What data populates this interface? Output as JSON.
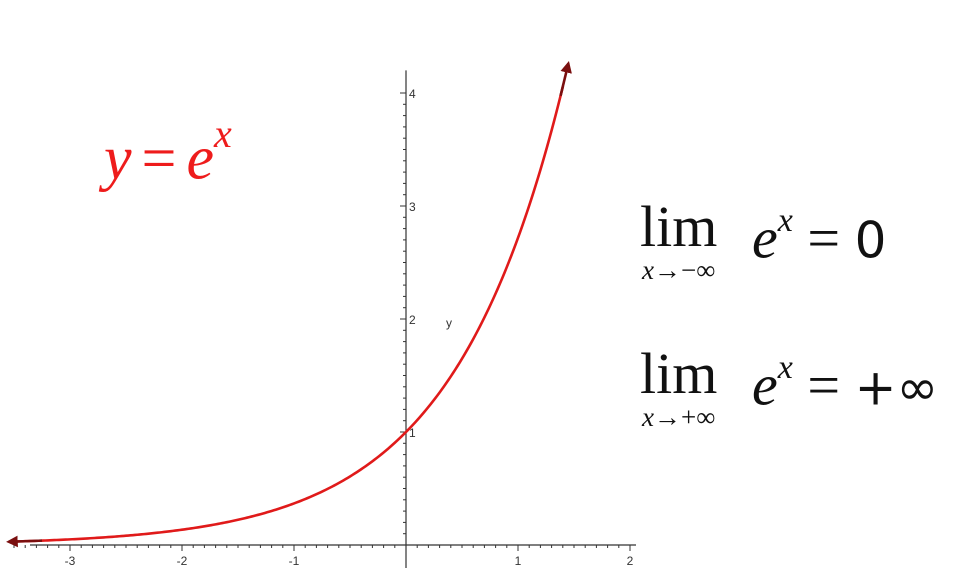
{
  "chart_data": {
    "type": "line",
    "function": "e^x",
    "x": [
      -3.5,
      -3,
      -2.5,
      -2,
      -1.5,
      -1,
      -0.5,
      0,
      0.5,
      1,
      1.2,
      1.4
    ],
    "series": [
      {
        "values": [
          0.03,
          0.05,
          0.082,
          0.135,
          0.223,
          0.368,
          0.607,
          1.0,
          1.649,
          2.718,
          3.32,
          4.055
        ]
      }
    ],
    "xlim": [
      -3.6,
      2.0
    ],
    "ylim": [
      -0.3,
      4.2
    ],
    "x_ticks": [
      -3,
      -2,
      -1,
      1,
      2
    ],
    "y_ticks": [
      1,
      2,
      3,
      4
    ],
    "ylabel": "y",
    "grid": false,
    "line_color": "#e01a1a",
    "arrow_color": "#7a0f0f"
  },
  "labels": {
    "fn_y": "y",
    "fn_eq": "=",
    "fn_e": "e",
    "fn_x": "x"
  },
  "limits": [
    {
      "word": "lim",
      "sub_var": "x",
      "sub_arrow": "→",
      "sub_target": "−∞",
      "e": "e",
      "exp": "x",
      "eq": " = ",
      "rhs": "0"
    },
    {
      "word": "lim",
      "sub_var": "x",
      "sub_arrow": "→",
      "sub_target": "+∞",
      "e": "e",
      "exp": "x",
      "eq": " = ",
      "rhs": "+∞"
    }
  ],
  "colors": {
    "axis": "#333333",
    "label": "#ee1c1c",
    "text": "#111111"
  }
}
